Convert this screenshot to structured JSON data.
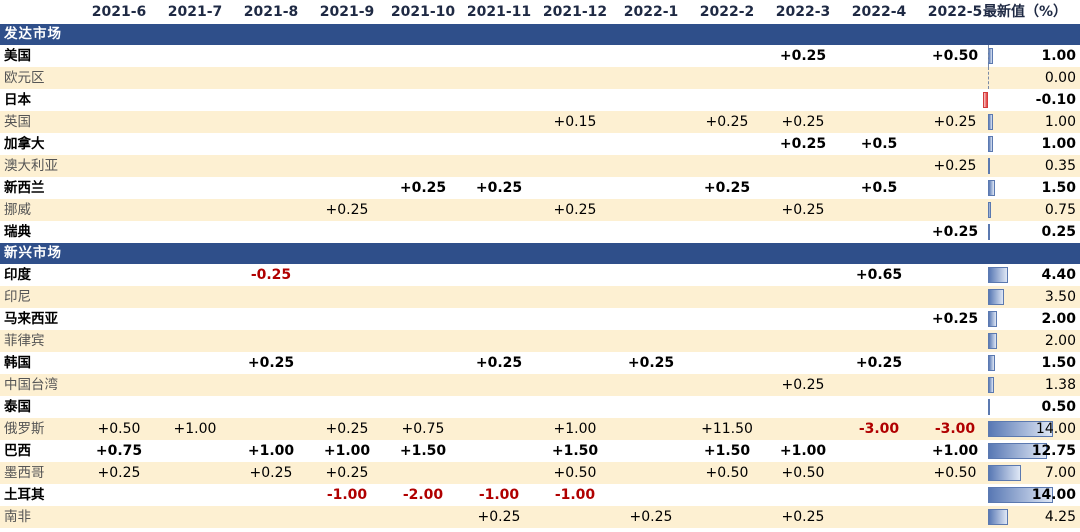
{
  "header": {
    "months": [
      "2021-6",
      "2021-7",
      "2021-8",
      "2021-9",
      "2021-10",
      "2021-11",
      "2021-12",
      "2022-1",
      "2022-2",
      "2022-3",
      "2022-4",
      "2022-5"
    ],
    "latest_label": "最新值（%）"
  },
  "sections": [
    {
      "title": "发达市场",
      "rows": [
        {
          "name": "美国",
          "bold": true,
          "cells": [
            "",
            "",
            "",
            "",
            "",
            "",
            "",
            "",
            "",
            "+0.25",
            "",
            "+0.50"
          ],
          "latest": "1.00",
          "latest_num": 1.0
        },
        {
          "name": "欧元区",
          "bold": false,
          "cells": [
            "",
            "",
            "",
            "",
            "",
            "",
            "",
            "",
            "",
            "",
            "",
            ""
          ],
          "latest": "0.00",
          "latest_num": 0.0
        },
        {
          "name": "日本",
          "bold": true,
          "cells": [
            "",
            "",
            "",
            "",
            "",
            "",
            "",
            "",
            "",
            "",
            "",
            ""
          ],
          "latest": "-0.10",
          "latest_num": -0.1
        },
        {
          "name": "英国",
          "bold": false,
          "cells": [
            "",
            "",
            "",
            "",
            "",
            "",
            "+0.15",
            "",
            "+0.25",
            "+0.25",
            "",
            "+0.25"
          ],
          "latest": "1.00",
          "latest_num": 1.0
        },
        {
          "name": "加拿大",
          "bold": true,
          "cells": [
            "",
            "",
            "",
            "",
            "",
            "",
            "",
            "",
            "",
            "+0.25",
            "+0.5",
            ""
          ],
          "latest": "1.00",
          "latest_num": 1.0
        },
        {
          "name": "澳大利亚",
          "bold": false,
          "cells": [
            "",
            "",
            "",
            "",
            "",
            "",
            "",
            "",
            "",
            "",
            "",
            "+0.25"
          ],
          "latest": "0.35",
          "latest_num": 0.35
        },
        {
          "name": "新西兰",
          "bold": true,
          "cells": [
            "",
            "",
            "",
            "",
            "+0.25",
            "+0.25",
            "",
            "",
            "+0.25",
            "",
            "+0.5",
            ""
          ],
          "latest": "1.50",
          "latest_num": 1.5
        },
        {
          "name": "挪威",
          "bold": false,
          "cells": [
            "",
            "",
            "",
            "+0.25",
            "",
            "",
            "+0.25",
            "",
            "",
            "+0.25",
            "",
            ""
          ],
          "latest": "0.75",
          "latest_num": 0.75
        },
        {
          "name": "瑞典",
          "bold": true,
          "cells": [
            "",
            "",
            "",
            "",
            "",
            "",
            "",
            "",
            "",
            "",
            "",
            "+0.25"
          ],
          "latest": "0.25",
          "latest_num": 0.25
        }
      ]
    },
    {
      "title": "新兴市场",
      "rows": [
        {
          "name": "印度",
          "bold": true,
          "cells": [
            "",
            "",
            "-0.25",
            "",
            "",
            "",
            "",
            "",
            "",
            "",
            "+0.65",
            ""
          ],
          "latest": "4.40",
          "latest_num": 4.4
        },
        {
          "name": "印尼",
          "bold": false,
          "cells": [
            "",
            "",
            "",
            "",
            "",
            "",
            "",
            "",
            "",
            "",
            "",
            ""
          ],
          "latest": "3.50",
          "latest_num": 3.5
        },
        {
          "name": "马来西亚",
          "bold": true,
          "cells": [
            "",
            "",
            "",
            "",
            "",
            "",
            "",
            "",
            "",
            "",
            "",
            "+0.25"
          ],
          "latest": "2.00",
          "latest_num": 2.0
        },
        {
          "name": "菲律宾",
          "bold": false,
          "cells": [
            "",
            "",
            "",
            "",
            "",
            "",
            "",
            "",
            "",
            "",
            "",
            ""
          ],
          "latest": "2.00",
          "latest_num": 2.0
        },
        {
          "name": "韩国",
          "bold": true,
          "cells": [
            "",
            "",
            "+0.25",
            "",
            "",
            "+0.25",
            "",
            "+0.25",
            "",
            "",
            "+0.25",
            ""
          ],
          "latest": "1.50",
          "latest_num": 1.5
        },
        {
          "name": "中国台湾",
          "bold": false,
          "cells": [
            "",
            "",
            "",
            "",
            "",
            "",
            "",
            "",
            "",
            "+0.25",
            "",
            ""
          ],
          "latest": "1.38",
          "latest_num": 1.38
        },
        {
          "name": "泰国",
          "bold": true,
          "cells": [
            "",
            "",
            "",
            "",
            "",
            "",
            "",
            "",
            "",
            "",
            "",
            ""
          ],
          "latest": "0.50",
          "latest_num": 0.5
        },
        {
          "name": "俄罗斯",
          "bold": false,
          "cells": [
            "+0.50",
            "+1.00",
            "",
            "+0.25",
            "+0.75",
            "",
            "+1.00",
            "",
            "+11.50",
            "",
            "-3.00",
            "-3.00"
          ],
          "latest": "14.00",
          "latest_num": 14.0
        },
        {
          "name": "巴西",
          "bold": true,
          "cells": [
            "+0.75",
            "",
            "+1.00",
            "+1.00",
            "+1.50",
            "",
            "+1.50",
            "",
            "+1.50",
            "+1.00",
            "",
            "+1.00"
          ],
          "latest": "12.75",
          "latest_num": 12.75
        },
        {
          "name": "墨西哥",
          "bold": false,
          "cells": [
            "+0.25",
            "",
            "+0.25",
            "+0.25",
            "",
            "",
            "+0.50",
            "",
            "+0.50",
            "+0.50",
            "",
            "+0.50"
          ],
          "latest": "7.00",
          "latest_num": 7.0
        },
        {
          "name": "土耳其",
          "bold": true,
          "cells": [
            "",
            "",
            "",
            "-1.00",
            "-2.00",
            "-1.00",
            "-1.00",
            "",
            "",
            "",
            "",
            ""
          ],
          "latest": "14.00",
          "latest_num": 14.0
        },
        {
          "name": "南非",
          "bold": false,
          "cells": [
            "",
            "",
            "",
            "",
            "",
            "+0.25",
            "",
            "+0.25",
            "",
            "+0.25",
            "",
            ""
          ],
          "latest": "4.25",
          "latest_num": 4.25
        }
      ]
    }
  ],
  "colors": {
    "section_bar": "#2f4f8a",
    "stripe": "#fdf0d2",
    "negative": "#b00000",
    "bar": "#5878b4",
    "negbar": "#e33a3a"
  }
}
